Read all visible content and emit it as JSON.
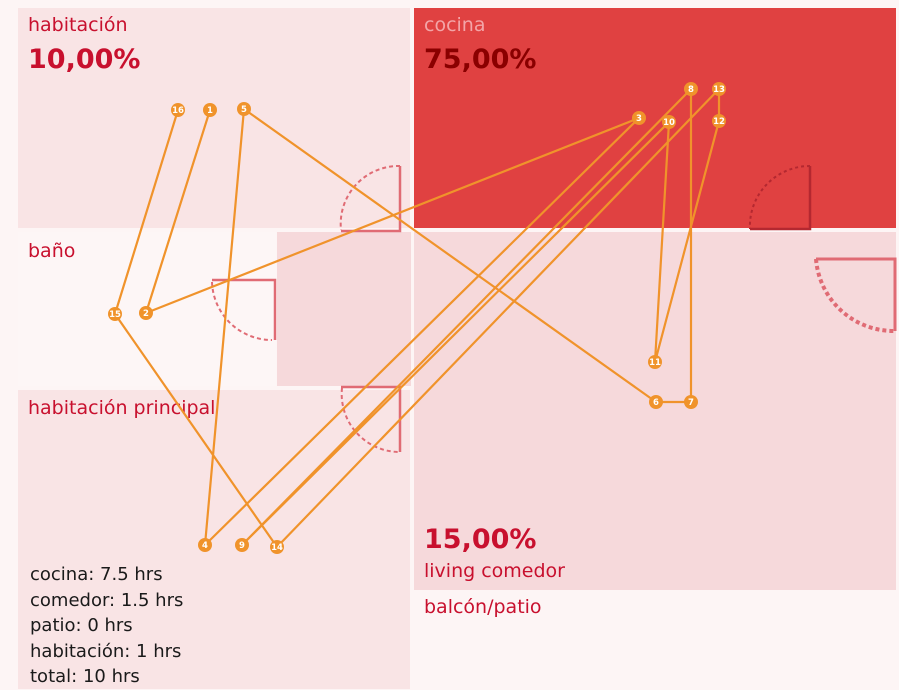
{
  "rooms": {
    "habitacion": {
      "label": "habitación",
      "pct": "10,00%"
    },
    "cocina": {
      "label": "cocina",
      "pct": "75,00%"
    },
    "bano": {
      "label": "baño"
    },
    "principal": {
      "label": "habitación principal"
    },
    "living": {
      "label": "living comedor",
      "pct": "15,00%"
    },
    "balcon": {
      "label": "balcón/patio"
    }
  },
  "summary": [
    "cocina: 7.5 hrs",
    "comedor: 1.5 hrs",
    "patio: 0 hrs",
    "habitación: 1 hrs",
    "total: 10 hrs"
  ],
  "colors": {
    "cocina": "#e04141",
    "living": "#f6d9db",
    "habitacion": "#f9e4e5",
    "principal": "#f9e4e5",
    "bano": "#fdf6f6",
    "path": "#f0932b",
    "door": "#e06b74"
  },
  "path_points": [
    "1",
    "2",
    "3",
    "4",
    "5",
    "6",
    "7",
    "8",
    "9",
    "10",
    "11",
    "12",
    "13",
    "14",
    "15",
    "16"
  ]
}
